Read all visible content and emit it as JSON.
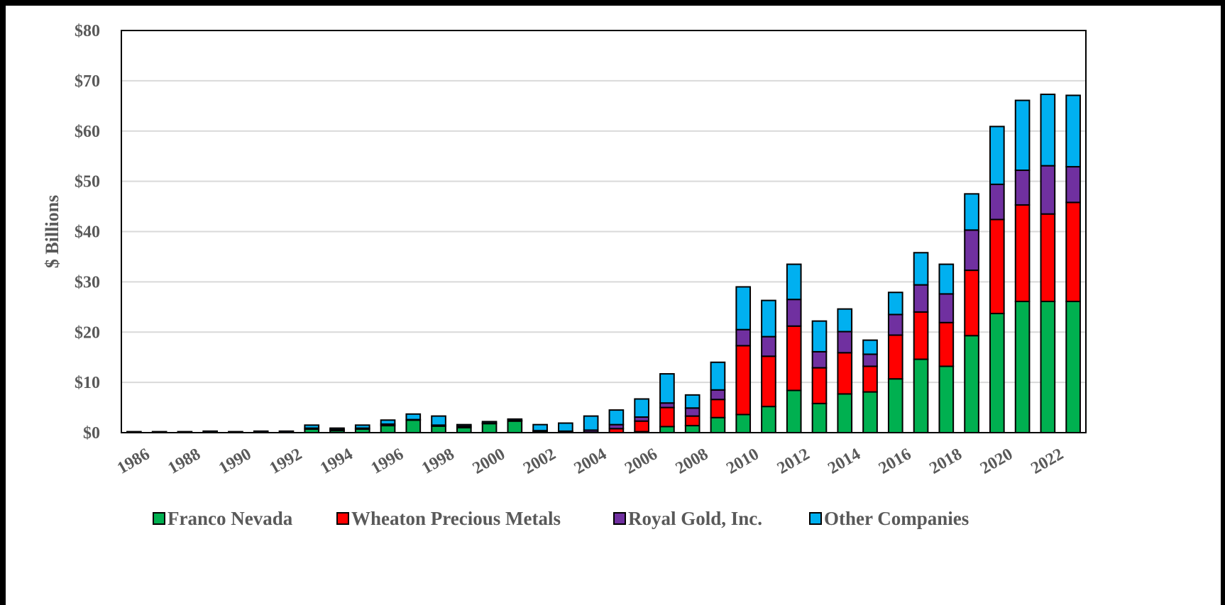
{
  "chart_data": {
    "type": "bar",
    "stacked": true,
    "title": "",
    "xlabel": "",
    "ylabel": "$ Billions",
    "ylim": [
      0,
      80
    ],
    "yticks": [
      0,
      10,
      20,
      30,
      40,
      50,
      60,
      70,
      80
    ],
    "ytick_labels": [
      "$0",
      "$10",
      "$20",
      "$30",
      "$40",
      "$50",
      "$60",
      "$70",
      "$80"
    ],
    "grid": true,
    "legend_position": "bottom",
    "categories": [
      "1986",
      "1987",
      "1988",
      "1989",
      "1990",
      "1991",
      "1992",
      "1993",
      "1994",
      "1995",
      "1996",
      "1997",
      "1998",
      "1999",
      "2000",
      "2001",
      "2002",
      "2003",
      "2004",
      "2005",
      "2006",
      "2007",
      "2008",
      "2009",
      "2010",
      "2011",
      "2012",
      "2013",
      "2014",
      "2015",
      "2016",
      "2017",
      "2018",
      "2019",
      "2020",
      "2021",
      "2022",
      "2023"
    ],
    "xtick_labels": [
      "1986",
      "1988",
      "1990",
      "1992",
      "1994",
      "1996",
      "1998",
      "2000",
      "2002",
      "2004",
      "2006",
      "2008",
      "2010",
      "2012",
      "2014",
      "2016",
      "2018",
      "2020",
      "2022"
    ],
    "series": [
      {
        "name": "Franco Nevada",
        "color": "#00b050",
        "values": [
          0,
          0,
          0,
          0,
          0,
          0,
          0,
          0.7,
          0.4,
          0.7,
          1.4,
          2.5,
          1.3,
          1.0,
          1.8,
          2.3,
          0.3,
          0.2,
          0.1,
          0.0,
          0.2,
          1.2,
          1.4,
          3.0,
          3.6,
          5.2,
          8.4,
          5.8,
          7.7,
          8.1,
          10.7,
          14.6,
          13.2,
          19.3,
          23.7,
          26.1,
          26.1,
          26.1
        ]
      },
      {
        "name": "Wheaton Precious Metals",
        "color": "#ff0000",
        "values": [
          0,
          0,
          0,
          0,
          0,
          0,
          0,
          0,
          0,
          0,
          0,
          0,
          0,
          0,
          0,
          0,
          0,
          0,
          0,
          0.8,
          2.1,
          3.8,
          1.9,
          3.6,
          13.7,
          10.0,
          12.8,
          7.1,
          8.2,
          5.1,
          8.7,
          9.4,
          8.7,
          13.0,
          18.7,
          19.2,
          17.4,
          19.7
        ]
      },
      {
        "name": "Royal Gold, Inc.",
        "color": "#7030a0",
        "values": [
          0,
          0,
          0,
          0,
          0,
          0,
          0,
          0.2,
          0.2,
          0.2,
          0.3,
          0.1,
          0.2,
          0.3,
          0.1,
          0.1,
          0.1,
          0.1,
          0.4,
          0.8,
          0.8,
          0.9,
          1.6,
          1.9,
          3.2,
          3.9,
          5.3,
          3.2,
          4.2,
          2.4,
          4.1,
          5.4,
          5.7,
          8.0,
          7.0,
          6.9,
          9.6,
          7.1
        ]
      },
      {
        "name": "Other Companies",
        "color": "#00b0f0",
        "values": [
          0.2,
          0.2,
          0.2,
          0.3,
          0.2,
          0.3,
          0.3,
          0.6,
          0.3,
          0.6,
          0.8,
          1.1,
          1.8,
          0.3,
          0.3,
          0.3,
          1.2,
          1.6,
          2.8,
          2.9,
          3.6,
          5.8,
          2.6,
          5.5,
          8.5,
          7.2,
          7.0,
          6.1,
          4.5,
          2.8,
          4.4,
          6.4,
          5.9,
          7.2,
          11.5,
          13.9,
          14.2,
          14.2
        ]
      }
    ]
  }
}
